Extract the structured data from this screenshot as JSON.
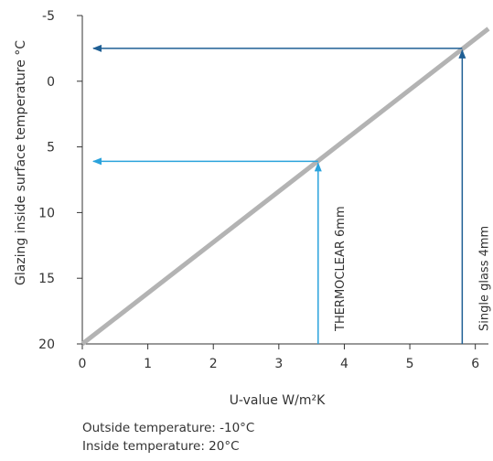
{
  "chart_data": {
    "type": "line",
    "title": "",
    "xlabel": "U-value W/m²K",
    "ylabel": "Glazing inside surface temperature °C",
    "x_ticks": [
      0,
      1,
      2,
      3,
      4,
      5,
      6
    ],
    "y_ticks": [
      -5,
      0,
      5,
      10,
      15,
      20
    ],
    "xlim": [
      0,
      6.2
    ],
    "ylim": [
      -5,
      20
    ],
    "y_inverted": true,
    "grid": false,
    "series": [
      {
        "x": [
          0,
          6.2
        ],
        "y": [
          20,
          -4
        ],
        "color": "#b3b3b3"
      }
    ],
    "annotations": [
      {
        "label": "THERMOCLEAR 6mm",
        "x": 3.6,
        "y": 6.1,
        "color": "#2ba3dc"
      },
      {
        "label": "Single glass 4mm",
        "x": 5.8,
        "y": -2.5,
        "color": "#1f5f94"
      }
    ]
  },
  "footnotes": {
    "outside": "Outside temperature: -10°C",
    "inside": "Inside temperature: 20°C"
  }
}
